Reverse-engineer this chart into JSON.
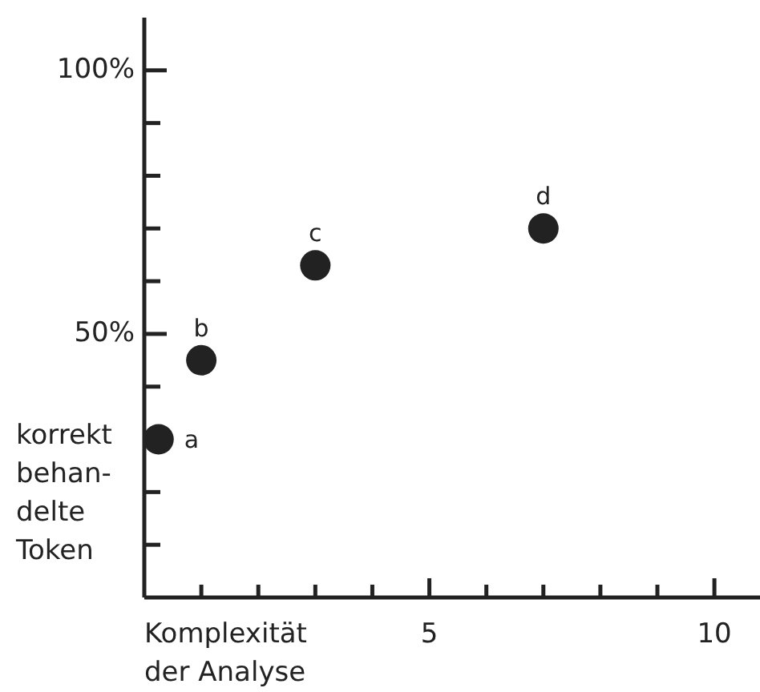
{
  "chart_data": {
    "type": "scatter",
    "xlabel": "Komplexität\nder Analyse",
    "ylabel": "korrekt\nbehan-\ndelte\nToken",
    "x": [
      0.25,
      1,
      3,
      7
    ],
    "values": [
      30,
      45,
      63,
      70
    ],
    "color": "#222222",
    "marker": "circle",
    "xlim": [
      0,
      10.8
    ],
    "xticks": [
      {
        "value": 1,
        "label": null
      },
      {
        "value": 2,
        "label": null
      },
      {
        "value": 3,
        "label": null
      },
      {
        "value": 4,
        "label": null
      },
      5,
      {
        "value": 6,
        "label": null
      },
      {
        "value": 7,
        "label": null
      },
      {
        "value": 8,
        "label": null
      },
      {
        "value": 9,
        "label": null
      },
      10
    ],
    "ylim": [
      0,
      110
    ],
    "yticks": [
      {
        "value": 10,
        "label": null
      },
      {
        "value": 20,
        "label": null
      },
      {
        "value": 30,
        "label": null
      },
      {
        "value": 40,
        "label": null
      },
      {
        "value": 50,
        "label": "50%"
      },
      {
        "value": 60,
        "label": null
      },
      {
        "value": 70,
        "label": null
      },
      {
        "value": 80,
        "label": null
      },
      {
        "value": 90,
        "label": null
      },
      {
        "value": 100,
        "label": "100%"
      }
    ],
    "annotations": [
      {
        "text": "a",
        "x": 0.25,
        "y": 30
      },
      {
        "text": "b",
        "x": 1,
        "y": 45
      },
      {
        "text": "c",
        "x": 3,
        "y": 63
      },
      {
        "text": "d",
        "x": 7,
        "y": 70
      }
    ]
  }
}
